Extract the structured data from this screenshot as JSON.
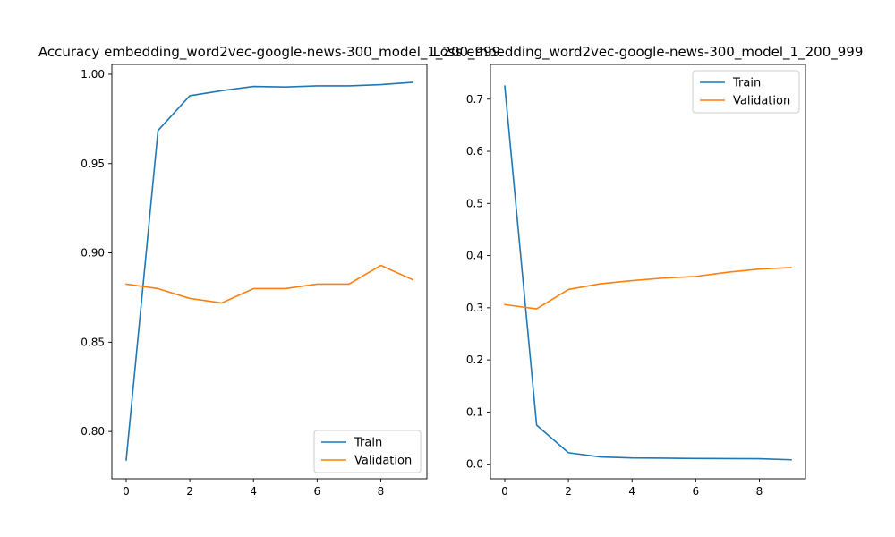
{
  "chart_data": [
    {
      "type": "line",
      "title": "Accuracy embedding_word2vec-google-news-300_model_1_200_999",
      "xlabel": "",
      "ylabel": "",
      "xlim": [
        -0.45,
        9.45
      ],
      "ylim": [
        0.7735,
        1.0055
      ],
      "x": [
        0,
        1,
        2,
        3,
        4,
        5,
        6,
        7,
        8,
        9
      ],
      "x_ticks": [
        0,
        2,
        4,
        6,
        8
      ],
      "y_ticks": [
        0.8,
        0.85,
        0.9,
        0.95,
        1.0
      ],
      "y_tick_labels": [
        "0.80",
        "0.85",
        "0.90",
        "0.95",
        "1.00"
      ],
      "legend_position": "lower-right",
      "series": [
        {
          "name": "Train",
          "color": "#1f77b4",
          "values": [
            0.784,
            0.9685,
            0.988,
            0.9908,
            0.9932,
            0.9929,
            0.9935,
            0.9935,
            0.9942,
            0.9955
          ]
        },
        {
          "name": "Validation",
          "color": "#ff7f0e",
          "values": [
            0.8825,
            0.88,
            0.8745,
            0.872,
            0.88,
            0.88,
            0.8825,
            0.8825,
            0.893,
            0.885
          ]
        }
      ]
    },
    {
      "type": "line",
      "title": "Loss embedding_word2vec-google-news-300_model_1_200_999",
      "xlabel": "",
      "ylabel": "",
      "xlim": [
        -0.45,
        9.45
      ],
      "ylim": [
        -0.028,
        0.7665
      ],
      "x": [
        0,
        1,
        2,
        3,
        4,
        5,
        6,
        7,
        8,
        9
      ],
      "x_ticks": [
        0,
        2,
        4,
        6,
        8
      ],
      "y_ticks": [
        0.0,
        0.1,
        0.2,
        0.3,
        0.4,
        0.5,
        0.6,
        0.7
      ],
      "y_tick_labels": [
        "0.0",
        "0.1",
        "0.2",
        "0.3",
        "0.4",
        "0.5",
        "0.6",
        "0.7"
      ],
      "legend_position": "upper-right",
      "series": [
        {
          "name": "Train",
          "color": "#1f77b4",
          "values": [
            0.725,
            0.075,
            0.022,
            0.014,
            0.012,
            0.0115,
            0.011,
            0.0108,
            0.0105,
            0.0085
          ]
        },
        {
          "name": "Validation",
          "color": "#ff7f0e",
          "values": [
            0.306,
            0.298,
            0.335,
            0.346,
            0.352,
            0.357,
            0.36,
            0.368,
            0.374,
            0.377
          ]
        }
      ]
    }
  ]
}
